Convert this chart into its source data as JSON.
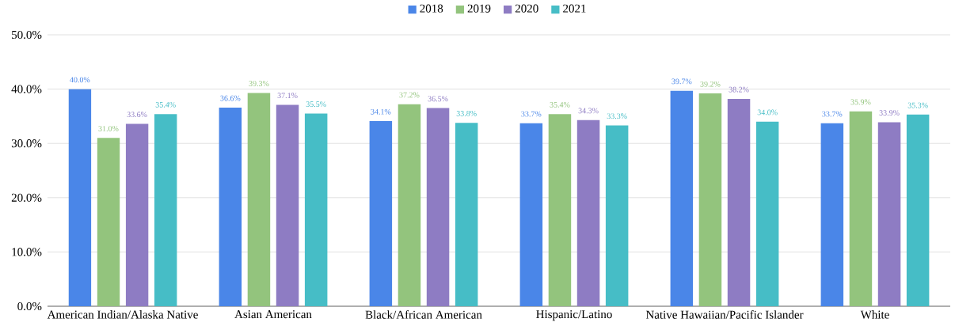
{
  "chart_data": {
    "type": "bar",
    "categories": [
      "American Indian/Alaska Native",
      "Asian American",
      "Black/African American",
      "Hispanic/Latino",
      "Native Hawaiian/Pacific Islander",
      "White"
    ],
    "series": [
      {
        "name": "2018",
        "color": "#4a86e8",
        "values": [
          40.0,
          36.6,
          34.1,
          33.7,
          39.7,
          33.7
        ],
        "value_labels": [
          "40.0%",
          "36.6%",
          "34.1%",
          "33.7%",
          "39.7%",
          "33.7%"
        ]
      },
      {
        "name": "2019",
        "color": "#93c47d",
        "values": [
          31.0,
          39.3,
          37.2,
          35.4,
          39.2,
          35.9
        ],
        "value_labels": [
          "31.0%",
          "39.3%",
          "37.2%",
          "35.4%",
          "39.2%",
          "35.9%"
        ]
      },
      {
        "name": "2020",
        "color": "#8e7cc3",
        "values": [
          33.6,
          37.1,
          36.5,
          34.3,
          38.2,
          33.9
        ],
        "value_labels": [
          "33.6%",
          "37.1%",
          "36.5%",
          "34.3%",
          "38.2%",
          "33.9%"
        ]
      },
      {
        "name": "2021",
        "color": "#46bdc6",
        "values": [
          35.4,
          35.5,
          33.8,
          33.3,
          34.0,
          35.3
        ],
        "value_labels": [
          "35.4%",
          "35.5%",
          "33.8%",
          "33.3%",
          "34.0%",
          "35.3%"
        ]
      }
    ],
    "ylim": [
      0,
      50
    ],
    "yticks": [
      {
        "value": 0,
        "label": "0.0%"
      },
      {
        "value": 10,
        "label": "10.0%"
      },
      {
        "value": 20,
        "label": "20.0%"
      },
      {
        "value": 30,
        "label": "30.0%"
      },
      {
        "value": 40,
        "label": "40.0%"
      },
      {
        "value": 50,
        "label": "50.0%"
      }
    ],
    "grid": "y",
    "legend": "top"
  }
}
